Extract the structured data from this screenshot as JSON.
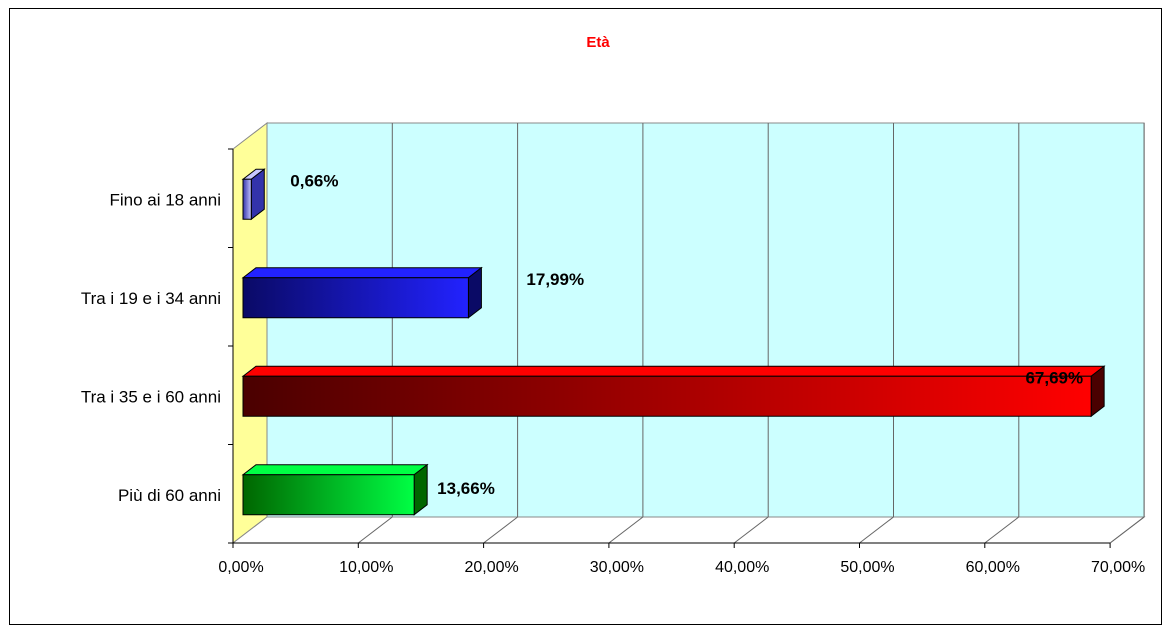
{
  "chart_data": {
    "type": "bar",
    "orientation": "horizontal",
    "style": "3d",
    "title": "Età",
    "categories": [
      "Fino ai 18 anni",
      "Tra i 19 e i 34 anni",
      "Tra i 35 e i 60 anni",
      "Più di 60 anni"
    ],
    "values": [
      0.66,
      17.99,
      67.69,
      13.66
    ],
    "data_labels": [
      "0,66%",
      "17,99%",
      "67,69%",
      "13,66%"
    ],
    "xlim": [
      0,
      70
    ],
    "x_ticks": [
      "0,00%",
      "10,00%",
      "20,00%",
      "30,00%",
      "40,00%",
      "50,00%",
      "60,00%",
      "70,00%"
    ],
    "grid": true,
    "legend": "none",
    "colors": {
      "plot_wall": "#ccffff",
      "side_wall": "#ffff99",
      "bars": [
        [
          "#3333aa",
          "#c8c8ff"
        ],
        [
          "#0a0a66",
          "#2222ff"
        ],
        [
          "#4a0000",
          "#ff0000"
        ],
        [
          "#006600",
          "#00ff44"
        ]
      ],
      "title": "#ff0000"
    }
  }
}
